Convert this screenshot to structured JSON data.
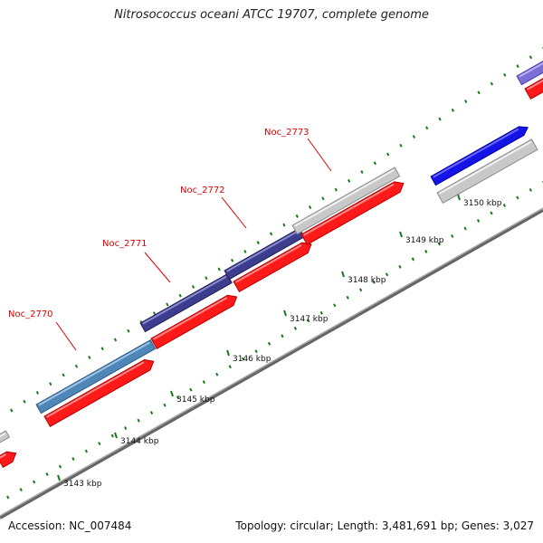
{
  "title": "Nitrosococcus oceani ATCC 19707, complete genome",
  "accession": "Accession: NC_007484",
  "summary": "Topology: circular; Length: 3,481,691 bp; Genes: 3,027",
  "colors": {
    "backbone": "#888888",
    "tick": "#1a7a1a",
    "gene_label": "#dd0000",
    "red_feature": "#ff1a1a",
    "steelblue_feature": "#4f86b8",
    "navy_feature": "#3d3d8f",
    "gray_feature": "#c8c8c8",
    "blue_feature": "#1414e6",
    "violet_feature": "#7b6fd6"
  },
  "scale_labels": [
    "3143 kbp",
    "3144 kbp",
    "3145 kbp",
    "3146 kbp",
    "3147 kbp",
    "3148 kbp",
    "3149 kbp",
    "3150 kbp"
  ],
  "gene_labels": [
    "Noc_2770",
    "Noc_2771",
    "Noc_2772",
    "Noc_2773"
  ],
  "features": [
    {
      "track": "outer",
      "color": "steelblue",
      "name": "Noc_2770"
    },
    {
      "track": "outer",
      "color": "navy",
      "name": "Noc_2771"
    },
    {
      "track": "outer",
      "color": "navy",
      "name": "Noc_2772"
    },
    {
      "track": "outer",
      "color": "gray",
      "name": "Noc_2773"
    },
    {
      "track": "outer",
      "color": "blue"
    },
    {
      "track": "outer",
      "color": "violet"
    },
    {
      "track": "inner",
      "color": "red"
    },
    {
      "track": "inner",
      "color": "red"
    },
    {
      "track": "inner",
      "color": "red"
    },
    {
      "track": "inner",
      "color": "red"
    },
    {
      "track": "inner",
      "color": "red"
    },
    {
      "track": "inner",
      "color": "gray"
    },
    {
      "track": "inner",
      "color": "red"
    }
  ]
}
